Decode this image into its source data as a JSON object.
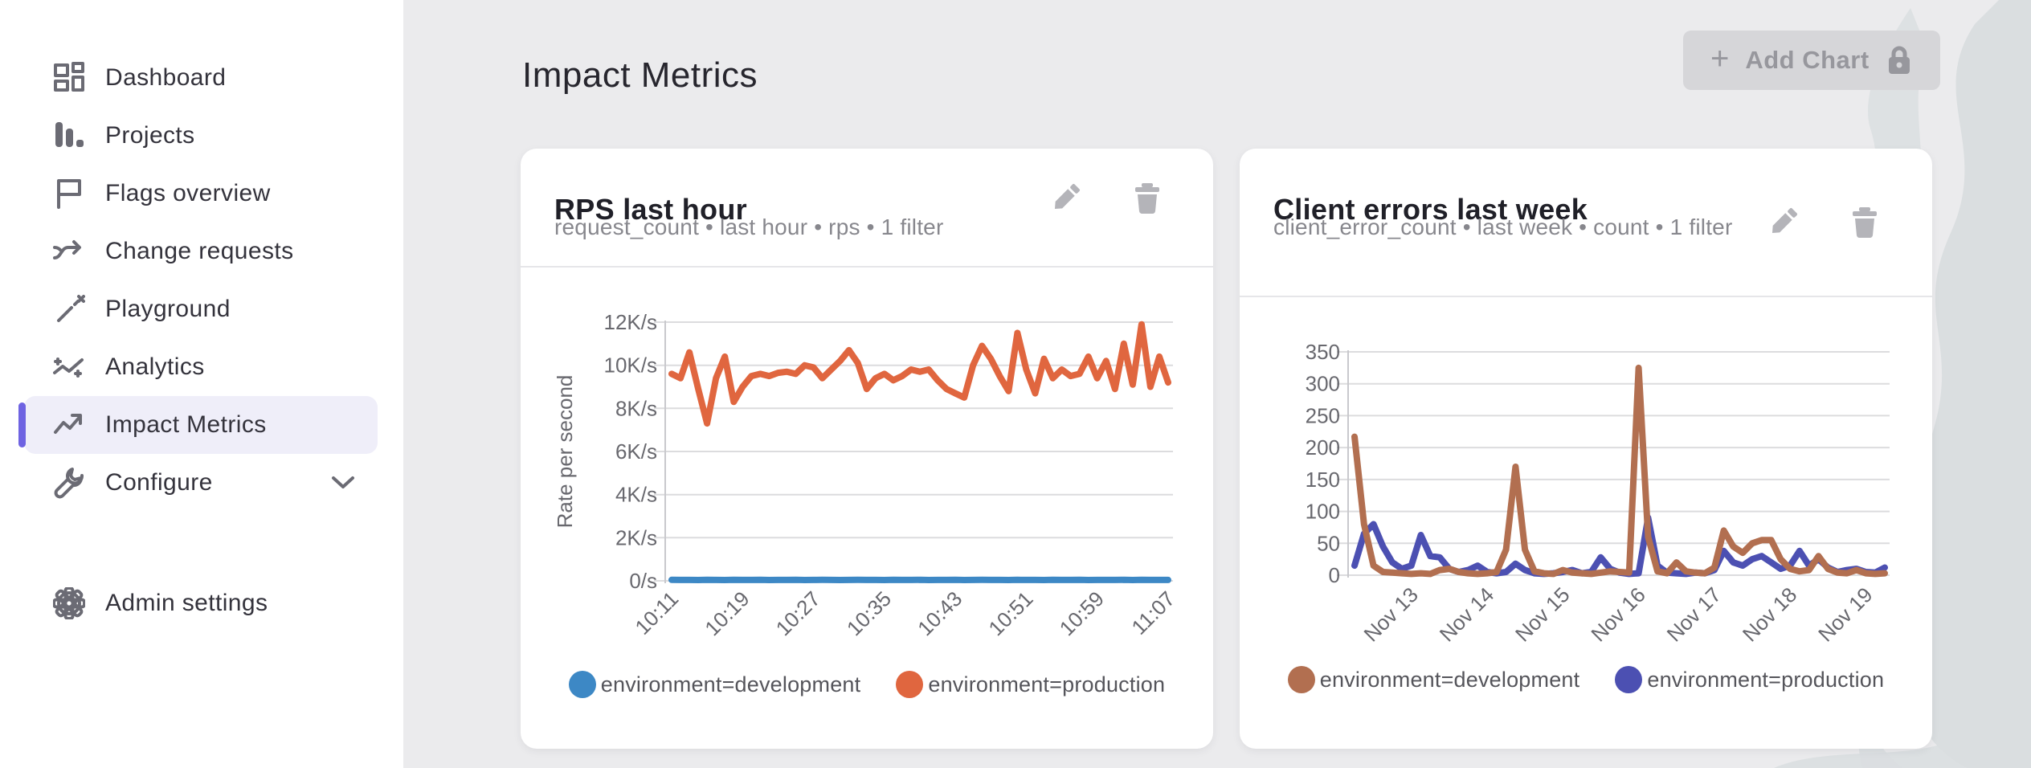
{
  "sidebar": {
    "items": [
      {
        "label": "Dashboard",
        "icon": "dashboard-icon"
      },
      {
        "label": "Projects",
        "icon": "projects-icon"
      },
      {
        "label": "Flags overview",
        "icon": "flag-icon"
      },
      {
        "label": "Change requests",
        "icon": "merge-arrow-icon"
      },
      {
        "label": "Playground",
        "icon": "wand-icon"
      },
      {
        "label": "Analytics",
        "icon": "analytics-icon"
      },
      {
        "label": "Impact Metrics",
        "icon": "trend-up-icon",
        "active": true
      },
      {
        "label": "Configure",
        "icon": "wrench-icon",
        "has_chevron": true
      }
    ],
    "bottom_items": [
      {
        "label": "Admin settings",
        "icon": "gear-icon"
      }
    ]
  },
  "header": {
    "page_title": "Impact Metrics",
    "add_chart_label": "Add Chart",
    "add_chart_locked": true
  },
  "colors": {
    "accent_purple": "#6e63e2",
    "active_item_bg": "#efeef9",
    "page_bg": "#ebebed",
    "card_bg": "#ffffff",
    "disabled_button_bg": "#d6d6d9",
    "disabled_button_text": "#97979d"
  },
  "chart_data": [
    {
      "type": "line",
      "title": "RPS last hour",
      "subtitle": "request_count • last hour • rps • 1 filter",
      "ylabel": "Rate per second",
      "ylim": [
        0,
        12000
      ],
      "grid": true,
      "legend_position": "bottom",
      "ytick_values": [
        0,
        2000,
        4000,
        6000,
        8000,
        10000,
        12000
      ],
      "ytick_labels": [
        "0/s",
        "2K/s",
        "4K/s",
        "6K/s",
        "8K/s",
        "10K/s",
        "12K/s"
      ],
      "xtick_labels": [
        "10:11",
        "10:19",
        "10:27",
        "10:35",
        "10:43",
        "10:51",
        "10:59",
        "11:07"
      ],
      "xtick_indices": [
        0,
        8,
        16,
        24,
        32,
        40,
        48,
        56
      ],
      "series": [
        {
          "name": "environment=development",
          "color": "#3d88c5",
          "values": [
            45,
            40,
            42,
            38,
            44,
            41,
            39,
            43,
            40,
            42,
            44,
            38,
            41,
            40,
            43,
            39,
            42,
            45,
            40,
            38,
            41,
            43,
            40,
            42,
            39,
            44,
            41,
            40,
            43,
            38,
            42,
            40,
            45,
            39,
            41,
            43,
            40,
            42,
            38,
            44,
            40,
            41,
            39,
            43,
            42,
            40,
            44,
            38,
            41,
            40,
            42,
            43,
            39,
            45,
            40,
            41,
            42
          ]
        },
        {
          "name": "environment=production",
          "color": "#e0663f",
          "values": [
            9600,
            9400,
            10600,
            8900,
            7300,
            9400,
            10400,
            8300,
            9000,
            9500,
            9600,
            9500,
            9650,
            9700,
            9600,
            10000,
            9900,
            9400,
            9800,
            10200,
            10700,
            10100,
            8900,
            9400,
            9600,
            9300,
            9500,
            9800,
            9700,
            9800,
            9300,
            8900,
            8700,
            8500,
            10000,
            10900,
            10300,
            9500,
            8800,
            11500,
            9800,
            8700,
            10300,
            9400,
            9800,
            9500,
            9600,
            10400,
            9400,
            10200,
            8900,
            11000,
            9100,
            11900,
            9000,
            10400,
            9200
          ]
        }
      ]
    },
    {
      "type": "line",
      "title": "Client errors last week",
      "subtitle": "client_error_count • last week • count • 1 filter",
      "ylabel": "",
      "ylim": [
        0,
        350
      ],
      "grid": true,
      "legend_position": "bottom",
      "ytick_values": [
        0,
        50,
        100,
        150,
        200,
        250,
        300,
        350
      ],
      "ytick_labels": [
        "0",
        "50",
        "100",
        "150",
        "200",
        "250",
        "300",
        "350"
      ],
      "xtick_labels": [
        "Nov 13",
        "Nov 14",
        "Nov 15",
        "Nov 16",
        "Nov 17",
        "Nov 18",
        "Nov 19"
      ],
      "xtick_indices": [
        6,
        14,
        22,
        30,
        38,
        46,
        54
      ],
      "series": [
        {
          "name": "environment=development",
          "color": "#b26f50",
          "values": [
            217,
            80,
            15,
            5,
            4,
            3,
            2,
            3,
            2,
            8,
            10,
            5,
            3,
            2,
            3,
            5,
            40,
            170,
            40,
            6,
            3,
            2,
            8,
            4,
            3,
            2,
            4,
            6,
            5,
            4,
            325,
            60,
            6,
            3,
            20,
            6,
            4,
            3,
            12,
            70,
            45,
            35,
            50,
            55,
            55,
            25,
            10,
            6,
            8,
            30,
            10,
            4,
            3,
            8,
            3,
            2,
            3
          ]
        },
        {
          "name": "environment=production",
          "color": "#4c50b2",
          "values": [
            15,
            65,
            80,
            45,
            20,
            10,
            15,
            63,
            30,
            28,
            10,
            5,
            8,
            15,
            5,
            3,
            5,
            18,
            8,
            3,
            2,
            3,
            5,
            8,
            3,
            5,
            28,
            10,
            4,
            2,
            3,
            90,
            15,
            4,
            3,
            2,
            4,
            3,
            8,
            38,
            20,
            15,
            25,
            30,
            20,
            10,
            15,
            38,
            15,
            25,
            12,
            5,
            8,
            10,
            5,
            4,
            12
          ]
        }
      ]
    }
  ]
}
